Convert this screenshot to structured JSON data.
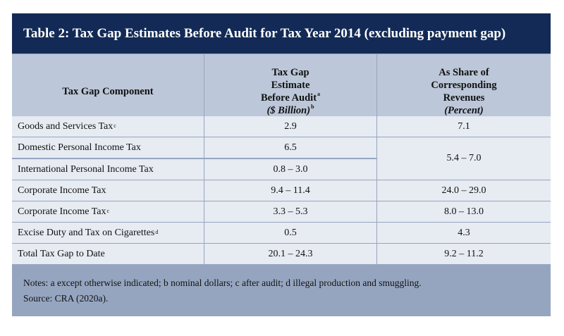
{
  "title": "Table 2: Tax Gap Estimates Before Audit for Tax Year 2014 (excluding payment gap)",
  "headers": {
    "component": "Tax Gap Component",
    "estimate": [
      "Tax Gap",
      "Estimate",
      "Before Audit",
      "($ Billion)"
    ],
    "estimate_sup": [
      "a",
      "b"
    ],
    "share": [
      "As Share of",
      "Corresponding",
      "Revenues",
      "(Percent)"
    ]
  },
  "rows": [
    {
      "component": "Goods and Services Tax",
      "sup": "c",
      "estimate": "2.9",
      "share": "7.1"
    },
    {
      "component": "Domestic Personal Income Tax",
      "sup": "",
      "estimate": "6.5",
      "share": "5.4 – 7.0"
    },
    {
      "component": "International Personal Income Tax",
      "sup": "",
      "estimate": "0.8 – 3.0",
      "share": ""
    },
    {
      "component": "Corporate Income Tax",
      "sup": "",
      "estimate": "9.4 – 11.4",
      "share": "24.0 – 29.0"
    },
    {
      "component": "Corporate Income Tax",
      "sup": "c",
      "estimate": "3.3 – 5.3",
      "share": "8.0 – 13.0"
    },
    {
      "component": "Excise Duty and Tax on Cigarettes",
      "sup": "d",
      "estimate": "0.5",
      "share": "4.3"
    },
    {
      "component": "Total Tax Gap to Date",
      "sup": "",
      "estimate": "20.1 – 24.3",
      "share": "9.2 – 11.2"
    }
  ],
  "notes": "Notes: a except otherwise indicated; b nominal dollars; c after audit; d illegal production and smuggling.",
  "source": "Source: CRA (2020a)."
}
